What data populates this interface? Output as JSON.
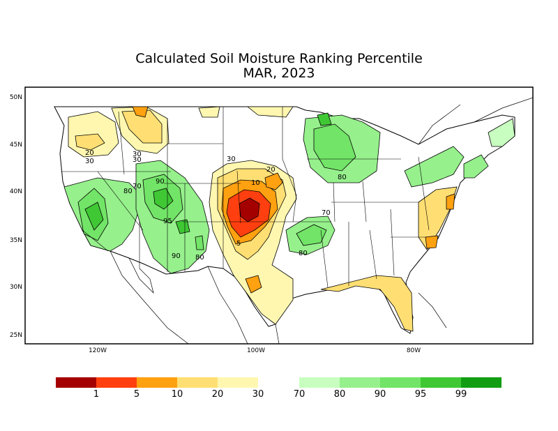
{
  "title": "Calculated Soil Moisture Ranking Percentile",
  "subtitle": "MAR, 2023",
  "lat_labels": [
    "50N",
    "45N",
    "40N",
    "35N",
    "30N",
    "25N"
  ],
  "lon_labels": [
    "120W",
    "100W",
    "80W"
  ],
  "legend": {
    "dry_colors": [
      "#a50000",
      "#ff3f0f",
      "#ffa110",
      "#ffdf73",
      "#fff7b0"
    ],
    "wet_colors": [
      "#c8ffc0",
      "#96f08c",
      "#72e467",
      "#3fc834",
      "#129e12"
    ],
    "dry_labels": [
      "1",
      "5",
      "10",
      "20",
      "30"
    ],
    "wet_labels": [
      "70",
      "80",
      "90",
      "95",
      "99"
    ]
  },
  "map_labels": {
    "l20a": "20",
    "l30a": "30",
    "l30b": "30",
    "l30c": "30",
    "l80a": "80",
    "l70a": "70",
    "l90a": "90",
    "l95a": "95",
    "l90b": "90",
    "l80b": "80",
    "l30d": "30",
    "l20b": "20",
    "l10": "10",
    "l5": "5",
    "l70b": "70",
    "l80c": "80",
    "l80d": "80"
  }
}
